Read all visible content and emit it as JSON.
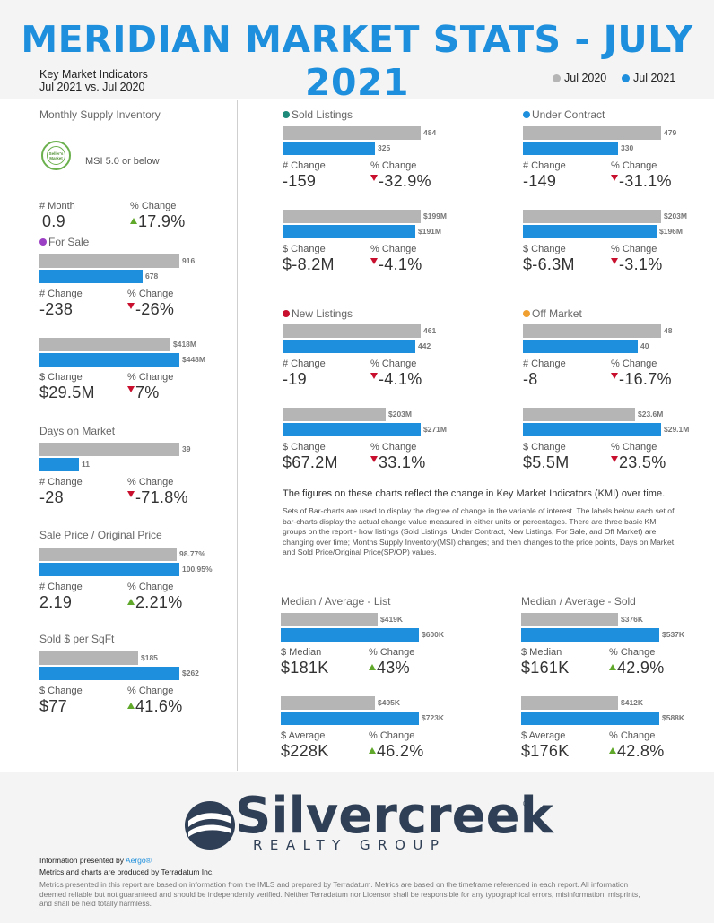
{
  "header": {
    "title": "MERIDIAN MARKET STATS - JULY 2021",
    "subtitle_line1": "Key Market Indicators",
    "subtitle_line2": "Jul 2021 vs. Jul 2020",
    "legend": [
      {
        "label": "Jul 2020",
        "color": "#b5b5b5"
      },
      {
        "label": "Jul 2021",
        "color": "#1e8fdc"
      }
    ]
  },
  "colors": {
    "gray": "#b5b5b5",
    "blue": "#1e8fdc",
    "up": "#5fa82a",
    "down": "#c8102e"
  },
  "msi": {
    "title": "Monthly Supply Inventory",
    "badge_text": "Seller's Market",
    "badge_label": "MSI 5.0 or below",
    "num_label": "# Month",
    "num_value": "0.9",
    "pct_label": "% Change",
    "pct_value": "17.9%",
    "pct_dir": "up"
  },
  "charts": [
    {
      "id": "for-sale",
      "title": "For Sale",
      "dot": "#9b3fc4",
      "bar_2020": "916",
      "bar_2021": "678",
      "val_2020": 916,
      "val_2021": 678,
      "chg_label": "# Change",
      "chg_value": "-238",
      "pct_label": "% Change",
      "pct_value": "-26%",
      "pct_dir": "down"
    },
    {
      "id": "for-sale-dollar",
      "title": "",
      "bar_2020": "$418M",
      "bar_2021": "$448M",
      "val_2020": 418,
      "val_2021": 448,
      "chg_label": "$ Change",
      "chg_value": "$29.5M",
      "pct_label": "% Change",
      "pct_value": "7%",
      "pct_dir": "down"
    },
    {
      "id": "dom",
      "title": "Days on Market",
      "bar_2020": "39",
      "bar_2021": "11",
      "val_2020": 39,
      "val_2021": 11,
      "chg_label": "# Change",
      "chg_value": "-28",
      "pct_label": "% Change",
      "pct_value": "-71.8%",
      "pct_dir": "down"
    },
    {
      "id": "sp-op",
      "title": "Sale Price / Original Price",
      "bar_2020": "98.77%",
      "bar_2021": "100.95%",
      "val_2020": 98.77,
      "val_2021": 100.95,
      "chg_label": "# Change",
      "chg_value": "2.19",
      "pct_label": "% Change",
      "pct_value": "2.21%",
      "pct_dir": "up"
    },
    {
      "id": "sqft",
      "title": "Sold $ per SqFt",
      "bar_2020": "$185",
      "bar_2021": "$262",
      "val_2020": 185,
      "val_2021": 262,
      "chg_label": "$ Change",
      "chg_value": "$77",
      "pct_label": "% Change",
      "pct_value": "41.6%",
      "pct_dir": "up"
    },
    {
      "id": "sold",
      "title": "Sold Listings",
      "dot": "#1d8a7a",
      "bar_2020": "484",
      "bar_2021": "325",
      "val_2020": 484,
      "val_2021": 325,
      "chg_label": "# Change",
      "chg_value": "-159",
      "pct_label": "% Change",
      "pct_value": "-32.9%",
      "pct_dir": "down"
    },
    {
      "id": "sold-dollar",
      "title": "",
      "bar_2020": "$199M",
      "bar_2021": "$191M",
      "val_2020": 199,
      "val_2021": 191,
      "chg_label": "$ Change",
      "chg_value": "$-8.2M",
      "pct_label": "% Change",
      "pct_value": "-4.1%",
      "pct_dir": "down"
    },
    {
      "id": "uc",
      "title": "Under Contract",
      "dot": "#1e8fdc",
      "bar_2020": "479",
      "bar_2021": "330",
      "val_2020": 479,
      "val_2021": 330,
      "chg_label": "# Change",
      "chg_value": "-149",
      "pct_label": "% Change",
      "pct_value": "-31.1%",
      "pct_dir": "down"
    },
    {
      "id": "uc-dollar",
      "title": "",
      "bar_2020": "$203M",
      "bar_2021": "$196M",
      "val_2020": 203,
      "val_2021": 196,
      "chg_label": "$ Change",
      "chg_value": "$-6.3M",
      "pct_label": "% Change",
      "pct_value": "-3.1%",
      "pct_dir": "down"
    },
    {
      "id": "new",
      "title": "New Listings",
      "dot": "#c8102e",
      "bar_2020": "461",
      "bar_2021": "442",
      "val_2020": 461,
      "val_2021": 442,
      "chg_label": "# Change",
      "chg_value": "-19",
      "pct_label": "% Change",
      "pct_value": "-4.1%",
      "pct_dir": "down"
    },
    {
      "id": "new-dollar",
      "title": "",
      "bar_2020": "$203M",
      "bar_2021": "$271M",
      "val_2020": 203,
      "val_2021": 271,
      "chg_label": "$ Change",
      "chg_value": "$67.2M",
      "pct_label": "% Change",
      "pct_value": "33.1%",
      "pct_dir": "down"
    },
    {
      "id": "off",
      "title": "Off Market",
      "dot": "#f0a030",
      "bar_2020": "48",
      "bar_2021": "40",
      "val_2020": 48,
      "val_2021": 40,
      "chg_label": "# Change",
      "chg_value": "-8",
      "pct_label": "% Change",
      "pct_value": "-16.7%",
      "pct_dir": "down"
    },
    {
      "id": "off-dollar",
      "title": "",
      "bar_2020": "$23.6M",
      "bar_2021": "$29.1M",
      "val_2020": 23.6,
      "val_2021": 29.1,
      "chg_label": "$ Change",
      "chg_value": "$5.5M",
      "pct_label": "% Change",
      "pct_value": "23.5%",
      "pct_dir": "down"
    },
    {
      "id": "list-median",
      "title": "Median / Average - List",
      "bar_2020": "$419K",
      "bar_2021": "$600K",
      "val_2020": 419,
      "val_2021": 600,
      "chg_label": "$ Median",
      "chg_value": "$181K",
      "pct_label": "% Change",
      "pct_value": "43%",
      "pct_dir": "up"
    },
    {
      "id": "list-avg",
      "title": "",
      "bar_2020": "$495K",
      "bar_2021": "$723K",
      "val_2020": 495,
      "val_2021": 723,
      "chg_label": "$ Average",
      "chg_value": "$228K",
      "pct_label": "% Change",
      "pct_value": "46.2%",
      "pct_dir": "up"
    },
    {
      "id": "sold-median",
      "title": "Median / Average - Sold",
      "bar_2020": "$376K",
      "bar_2021": "$537K",
      "val_2020": 376,
      "val_2021": 537,
      "chg_label": "$ Median",
      "chg_value": "$161K",
      "pct_label": "% Change",
      "pct_value": "42.9%",
      "pct_dir": "up"
    },
    {
      "id": "sold-avg",
      "title": "",
      "bar_2020": "$412K",
      "bar_2021": "$588K",
      "val_2020": 412,
      "val_2021": 588,
      "chg_label": "$ Average",
      "chg_value": "$176K",
      "pct_label": "% Change",
      "pct_value": "42.8%",
      "pct_dir": "up"
    }
  ],
  "description": {
    "title": "The figures on these charts reflect the change in Key Market Indicators (KMI) over time.",
    "body": "Sets of Bar-charts are used to display the degree of change in the variable of interest. The labels below each set of bar-charts display the actual change value measured in either units or percentages. There are three basic KMI groups on the report - how listings (Sold Listings, Under Contract, New Listings, For Sale, and Off Market) are changing over time; Months Supply Inventory(MSI) changes; and then changes to the price points, Days on Market, and Sold Price/Original Price(SP/OP) values."
  },
  "footer": {
    "logo_word": "Silvercreek",
    "logo_reg": "®",
    "logo_sub": "REALTY GROUP",
    "presented_prefix": "Information presented by ",
    "presented_brand": "Aergo®",
    "produced": "Metrics and charts are produced by Terradatum Inc.",
    "disclaimer": "Metrics presented in this report are based on information from the IMLS and prepared by Terradatum. Metrics are based on the timeframe referenced in each report. All information deemed reliable but not guaranteed and should be independently verified. Neither Terradatum nor Licensor shall be responsible for any typographical errors, misinformation, misprints, and shall be held totally harmless."
  }
}
